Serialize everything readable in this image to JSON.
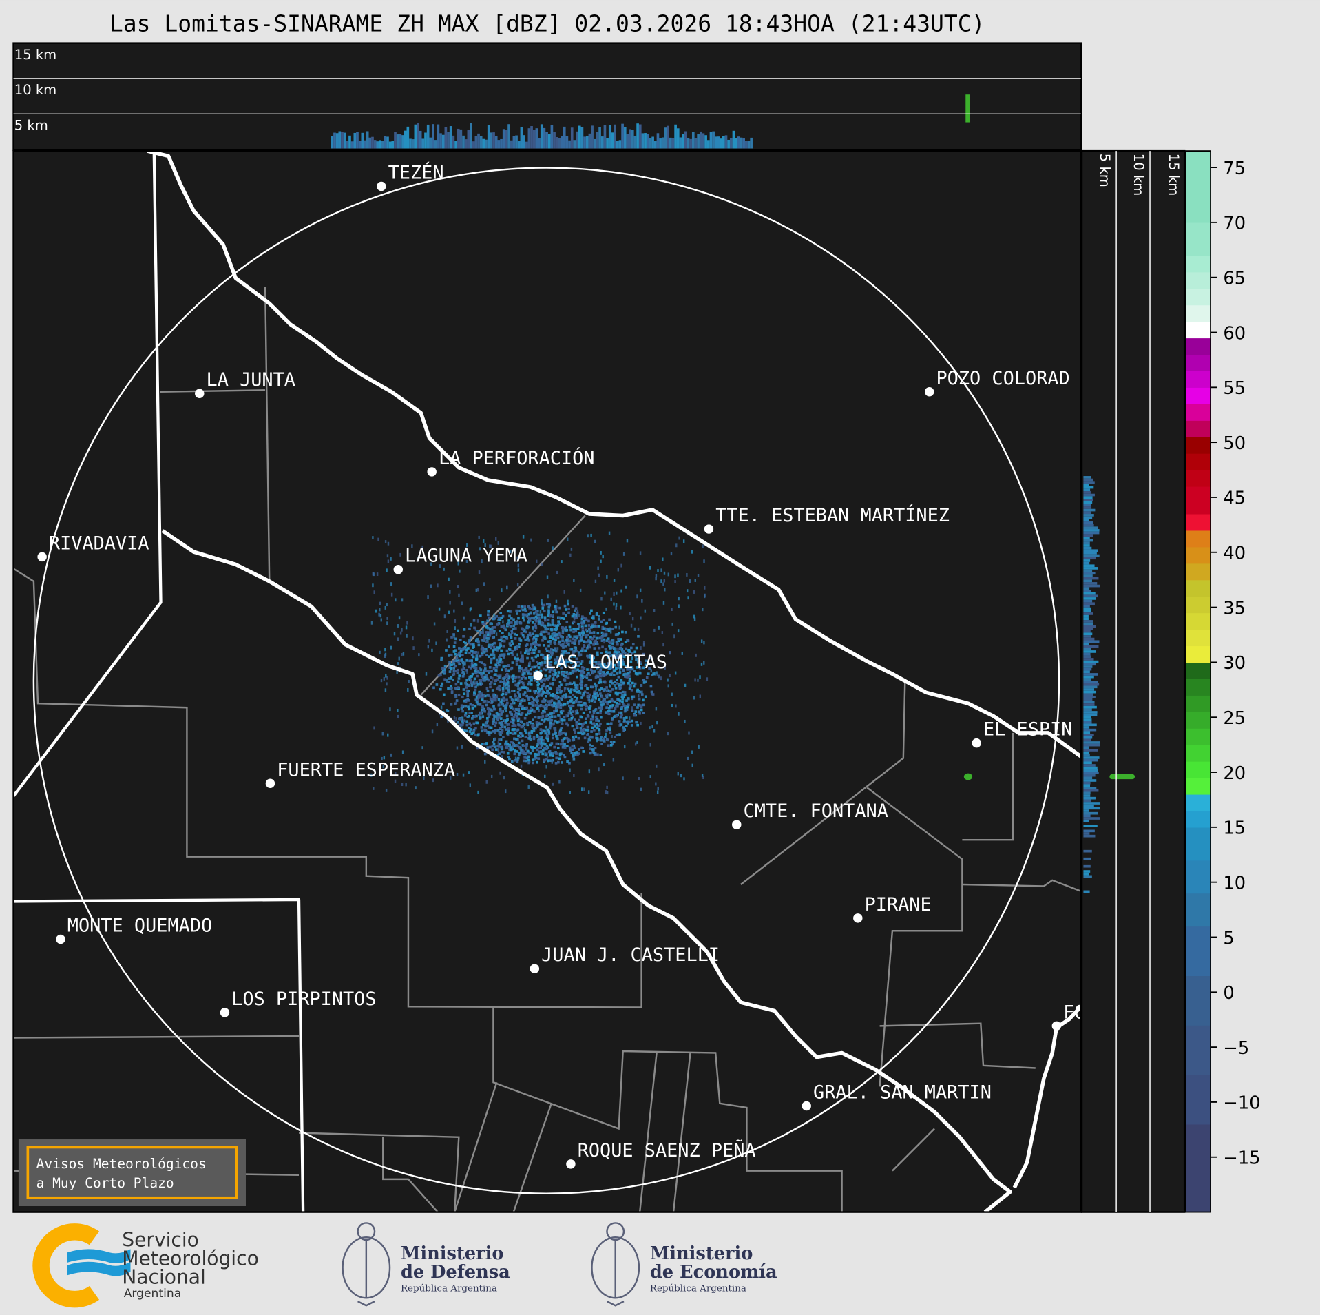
{
  "title": "Las Lomitas-SINARAME ZH MAX [dBZ] 02.03.2026 18:43HOA (21:43UTC)",
  "top_panel": {
    "labels": [
      "15 km",
      "10 km",
      "5 km"
    ]
  },
  "side_panel": {
    "labels": [
      "5 km",
      "10 km",
      "15 km"
    ]
  },
  "colorbar": {
    "unit": "dBZ",
    "range": [
      -20,
      76.5
    ],
    "ticks": [
      75,
      70,
      65,
      60,
      55,
      50,
      45,
      40,
      35,
      30,
      25,
      20,
      15,
      10,
      5,
      0,
      -5,
      -10,
      -15
    ],
    "tick_labels": [
      "75",
      "70",
      "65",
      "60",
      "55",
      "50",
      "45",
      "40",
      "35",
      "30",
      "25",
      "20",
      "15",
      "10",
      "5",
      "0",
      "−5",
      "−10",
      "−15"
    ],
    "bands": [
      [
        -20,
        -12,
        "#3c4470"
      ],
      [
        -12,
        -7.5,
        "#3c5080"
      ],
      [
        -7.5,
        -3,
        "#3c5888"
      ],
      [
        -3,
        1.5,
        "#386090"
      ],
      [
        1.5,
        6,
        "#356aa0"
      ],
      [
        6,
        9,
        "#2f78a8"
      ],
      [
        9,
        12,
        "#2a85b8"
      ],
      [
        12,
        15,
        "#2590c0"
      ],
      [
        15,
        16.5,
        "#25a0d0"
      ],
      [
        16.5,
        18,
        "#2ab0d8"
      ],
      [
        18,
        19.5,
        "#55f03a"
      ],
      [
        19.5,
        21,
        "#48e535"
      ],
      [
        21,
        22.5,
        "#42d232"
      ],
      [
        22.5,
        24,
        "#3cbf2e"
      ],
      [
        24,
        25.5,
        "#36ac2a"
      ],
      [
        25.5,
        27,
        "#309a25"
      ],
      [
        27,
        28.5,
        "#288520"
      ],
      [
        28.5,
        30,
        "#1f6a1a"
      ],
      [
        30,
        31.5,
        "#eaec3a"
      ],
      [
        31.5,
        33,
        "#e0e23a"
      ],
      [
        33,
        34.5,
        "#d6d834"
      ],
      [
        34.5,
        36,
        "#cccc30"
      ],
      [
        36,
        37.5,
        "#c4c42c"
      ],
      [
        37.5,
        39,
        "#d0a820"
      ],
      [
        39,
        40.5,
        "#d89018"
      ],
      [
        40.5,
        42,
        "#de7f18"
      ],
      [
        42,
        43.5,
        "#ee1133"
      ],
      [
        43.5,
        46,
        "#cc0022"
      ],
      [
        46,
        47.5,
        "#c00015"
      ],
      [
        47.5,
        49,
        "#b00008"
      ],
      [
        49,
        50.5,
        "#990000"
      ],
      [
        50.5,
        52,
        "#c0005a"
      ],
      [
        52,
        53.5,
        "#d9009a"
      ],
      [
        53.5,
        55,
        "#e600e6"
      ],
      [
        55,
        56.5,
        "#cc00cc"
      ],
      [
        56.5,
        58,
        "#b000b0"
      ],
      [
        58,
        59.5,
        "#990099"
      ],
      [
        59.5,
        61,
        "#ffffff"
      ],
      [
        61,
        62.5,
        "#e0f6ec"
      ],
      [
        62.5,
        64,
        "#c8f2e1"
      ],
      [
        64,
        65.5,
        "#b8eed9"
      ],
      [
        65.5,
        67,
        "#a8ecd2"
      ],
      [
        67,
        70,
        "#97e5c8"
      ],
      [
        70,
        76.5,
        "#8ae0c0"
      ]
    ]
  },
  "map": {
    "background": "#1a1a1a",
    "cities": [
      {
        "name": "TEZÉN"
      },
      {
        "name": "LA JUNTA"
      },
      {
        "name": "POZO COLORAD"
      },
      {
        "name": "LA PERFORACIÓN"
      },
      {
        "name": "TTE. ESTEBAN MARTÍNEZ"
      },
      {
        "name": "RIVADAVIA"
      },
      {
        "name": "LAGUNA YEMA"
      },
      {
        "name": "LAS LOMITAS"
      },
      {
        "name": "EL ESPIN"
      },
      {
        "name": "FUERTE ESPERANZA"
      },
      {
        "name": "CMTE. FONTANA"
      },
      {
        "name": "PIRANE"
      },
      {
        "name": "MONTE QUEMADO"
      },
      {
        "name": "JUAN J. CASTELLI"
      },
      {
        "name": "LOS PIRPINTOS"
      },
      {
        "name": "FO"
      },
      {
        "name": "GRAL. SAN MARTIN"
      },
      {
        "name": "ROQUE SAENZ PEÑA"
      }
    ]
  },
  "warning_box": {
    "line1": "Avisos Meteorológicos",
    "line2": "a Muy Corto Plazo",
    "border_color": "#f5a500"
  },
  "logos": {
    "smn": {
      "line1": "Servicio",
      "line2": "Meteorológico",
      "line3": "Nacional",
      "line4": "Argentina"
    },
    "defensa": {
      "line1": "Ministerio",
      "line2": "de Defensa",
      "line3": "República Argentina"
    },
    "economia": {
      "line1": "Ministerio",
      "line2": "de Economía",
      "line3": "República Argentina"
    }
  }
}
